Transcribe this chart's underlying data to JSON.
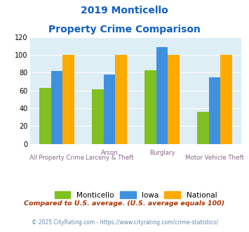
{
  "title_line1": "2019 Monticello",
  "title_line2": "Property Crime Comparison",
  "cat_labels_top": [
    "",
    "Arson",
    "Burglary",
    ""
  ],
  "cat_labels_bot": [
    "All Property Crime",
    "Larceny & Theft",
    "",
    "Motor Vehicle Theft"
  ],
  "monticello": [
    63,
    61,
    83,
    36
  ],
  "iowa": [
    82,
    78,
    109,
    75
  ],
  "national": [
    100,
    100,
    100,
    100
  ],
  "color_monticello": "#80c020",
  "color_iowa": "#4090e0",
  "color_national": "#ffaa00",
  "color_bg": "#ddeef5",
  "ylim": [
    0,
    120
  ],
  "yticks": [
    0,
    20,
    40,
    60,
    80,
    100,
    120
  ],
  "legend_labels": [
    "Monticello",
    "Iowa",
    "National"
  ],
  "footnote1": "Compared to U.S. average. (U.S. average equals 100)",
  "footnote2": "© 2025 CityRating.com - https://www.cityrating.com/crime-statistics/",
  "title_color": "#1060c0",
  "label_color": "#886688",
  "footnote1_color": "#aa3300",
  "footnote2_color": "#6688aa"
}
